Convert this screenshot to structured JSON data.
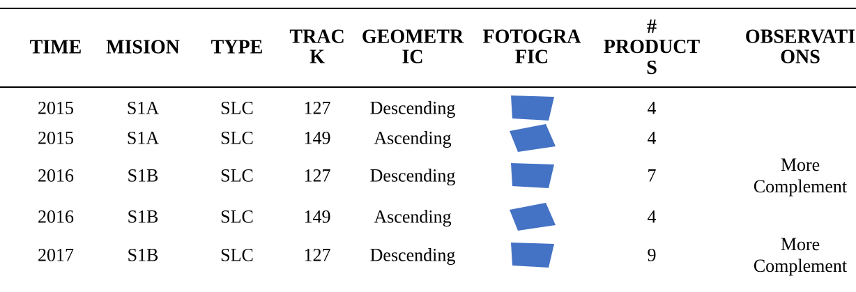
{
  "table": {
    "header": [
      "TIME",
      "MISION",
      "TYPE",
      "TRACK",
      "GEOMETRIC",
      "FOTOGRAFIC",
      "# PRODUCTS",
      "OBSERVATIONS"
    ],
    "rows": [
      {
        "time": "2015",
        "mission": "S1A",
        "type": "SLC",
        "track": "127",
        "geometry": "Descending",
        "products": "4"
      },
      {
        "time": "2015",
        "mission": "S1A",
        "type": "SLC",
        "track": "149",
        "geometry": "Ascending",
        "products": "4"
      },
      {
        "time": "2016",
        "mission": "S1B",
        "type": "SLC",
        "track": "127",
        "geometry": "Descending",
        "products": "7",
        "observations": "More Complement"
      },
      {
        "time": "2016",
        "mission": "S1B",
        "type": "SLC",
        "track": "149",
        "geometry": "Ascending",
        "products": "4"
      },
      {
        "time": "2017",
        "mission": "S1B",
        "type": "SLC",
        "track": "127",
        "geometry": "Descending",
        "products": "9",
        "observations": "More Complement"
      }
    ]
  }
}
